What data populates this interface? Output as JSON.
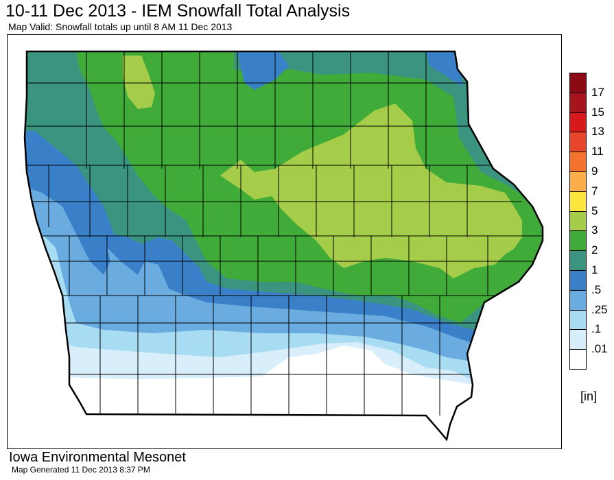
{
  "title": "10-11 Dec 2013 - IEM Snowfall Total Analysis",
  "subtitle": "Map Valid: Snowfall totals up until 8 AM 11 Dec 2013",
  "footer": {
    "org": "Iowa Environmental Mesonet",
    "generated": "Map Generated 11 Dec 2013 8:37 PM"
  },
  "legend": {
    "units": "[in]",
    "labels": [
      "17",
      "15",
      "13",
      "11",
      "9",
      "7",
      "5",
      "3",
      "2",
      "1",
      ".5",
      ".25",
      ".1",
      ".01"
    ],
    "colors": [
      "#8b0a14",
      "#a8141e",
      "#d7191c",
      "#e8462a",
      "#f4742d",
      "#fdae4b",
      "#fee641",
      "#a6cd4a",
      "#41ab3a",
      "#3a9480",
      "#3a80c8",
      "#6aacdf",
      "#a8dcf2",
      "#d8eefa",
      "#ffffff"
    ]
  },
  "map": {
    "state": "Iowa",
    "field": "snowfall total",
    "units": "in"
  }
}
